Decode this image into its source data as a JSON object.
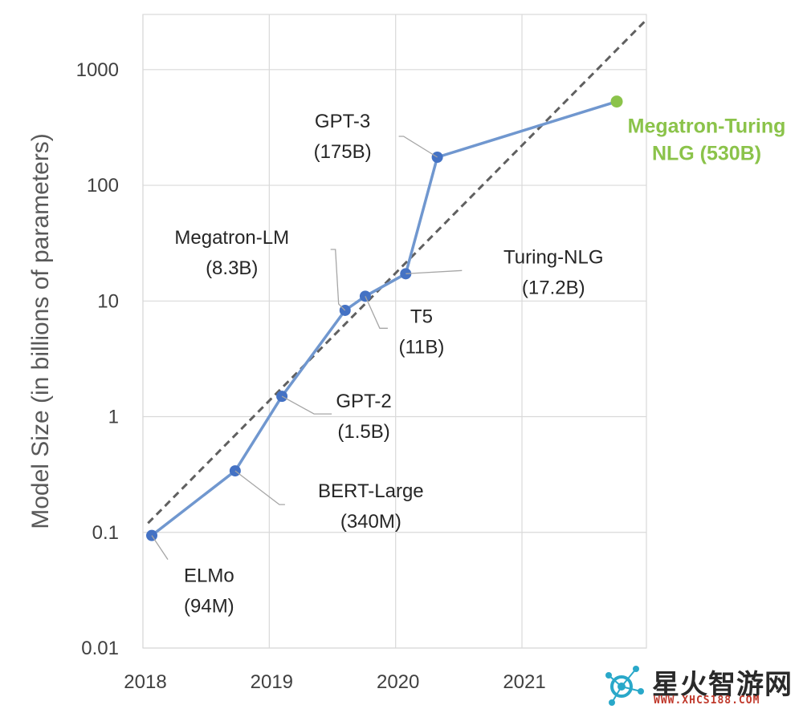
{
  "chart_data": {
    "type": "line",
    "ylabel": "Model Size (in billions of parameters)",
    "xlabel": "",
    "yscale": "log",
    "ylim": [
      0.01,
      3000
    ],
    "xlim": [
      2018.0,
      2021.985
    ],
    "grid": true,
    "x_ticks": [
      2018,
      2019,
      2020,
      2021
    ],
    "x_tick_labels": [
      "2018",
      "2019",
      "2020",
      "2021"
    ],
    "y_ticks": [
      0.01,
      0.1,
      1,
      10,
      100,
      1000
    ],
    "y_tick_labels": [
      "0.01",
      "0.1",
      "1",
      "10",
      "100",
      "1000"
    ],
    "colors": {
      "line": "#7097cf",
      "point": "#4472c4",
      "highlight": "#8bc34a",
      "trend": "#606060",
      "grid": "#d9d9d9"
    },
    "series": [
      {
        "points": [
          {
            "x": 2018.07,
            "y": 0.094,
            "label": [
              "ELMo",
              "(94M)"
            ]
          },
          {
            "x": 2018.73,
            "y": 0.34,
            "label": [
              "BERT-Large",
              "(340M)"
            ]
          },
          {
            "x": 2019.1,
            "y": 1.5,
            "label": [
              "GPT-2",
              "(1.5B)"
            ]
          },
          {
            "x": 2019.6,
            "y": 8.3,
            "label": [
              "Megatron-LM",
              "(8.3B)"
            ]
          },
          {
            "x": 2019.76,
            "y": 11,
            "label": [
              "T5",
              "(11B)"
            ]
          },
          {
            "x": 2020.08,
            "y": 17.2,
            "label": [
              "Turing-NLG",
              "(17.2B)"
            ]
          },
          {
            "x": 2020.33,
            "y": 175,
            "label": [
              "GPT-3",
              "(175B)"
            ]
          }
        ]
      }
    ],
    "highlight_point": {
      "x": 2021.75,
      "y": 530,
      "label": [
        "Megatron-Turing",
        "NLG (530B)"
      ]
    },
    "trendline": {
      "style": "dashed",
      "from": {
        "x": 2018.04,
        "y": 0.12
      },
      "to": {
        "x": 2021.985,
        "y": 2700
      }
    }
  },
  "watermark": {
    "text": "星火智游网",
    "url": "WWW.XHCS188.COM"
  }
}
